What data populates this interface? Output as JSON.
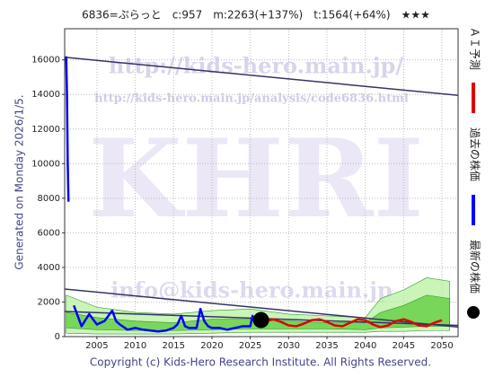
{
  "chart_data": {
    "type": "line",
    "title": "6836=ぷらっと　c:957　m:2263(+137%)　t:1564(+64%)　★★★",
    "side_text": "Generated on Monday 2026/1/5.",
    "footer": "Copyright (c) Kids-Hero Research Institute. All Rights Reserved.",
    "watermarks": [
      "http://kids-hero.main.jp/",
      "http://kids-hero.main.jp/analysis/code6836.html",
      "KHRI",
      "info@kids-hero.main.jp"
    ],
    "xlim": [
      2000.8,
      2052.1
    ],
    "ylim": [
      0,
      17800
    ],
    "xticks": [
      2005,
      2010,
      2015,
      2020,
      2025,
      2030,
      2035,
      2040,
      2045,
      2050
    ],
    "yticks": [
      0,
      2000,
      4000,
      6000,
      8000,
      10000,
      12000,
      14000,
      16000
    ],
    "grid": true,
    "bands": [
      {
        "color": "#b8f0a0",
        "x": [
          2001,
          2005,
          2010,
          2015,
          2020,
          2025,
          2030,
          2035,
          2040,
          2042,
          2045,
          2048,
          2051
        ],
        "upper": [
          2400,
          1700,
          1400,
          1300,
          1500,
          1600,
          1300,
          1200,
          1100,
          2200,
          2700,
          3400,
          3200
        ],
        "lower": [
          200,
          150,
          150,
          150,
          200,
          250,
          250,
          250,
          250,
          300,
          300,
          350,
          350
        ]
      },
      {
        "color": "#5ccc3c",
        "x": [
          2001,
          2005,
          2010,
          2015,
          2020,
          2025,
          2030,
          2035,
          2040,
          2042,
          2045,
          2048,
          2051
        ],
        "upper": [
          1400,
          1100,
          900,
          800,
          1000,
          1000,
          900,
          800,
          800,
          1400,
          1800,
          2400,
          2200
        ],
        "lower": [
          500,
          400,
          350,
          350,
          400,
          450,
          450,
          450,
          400,
          500,
          550,
          600,
          600
        ]
      }
    ],
    "trend_lines": [
      {
        "color": "#333366",
        "x": [
          2000.8,
          2052.1
        ],
        "values": [
          16150,
          13950
        ]
      },
      {
        "color": "#333366",
        "x": [
          2000.8,
          2052.1
        ],
        "values": [
          2750,
          550
        ]
      },
      {
        "color": "#333366",
        "x": [
          2000.8,
          2052.1
        ],
        "values": [
          1450,
          650
        ]
      }
    ],
    "series": [
      {
        "name": "ＡＩ予測",
        "color": "#e00000",
        "x": [
          2027,
          2028,
          2029,
          2030,
          2031,
          2032,
          2033,
          2034,
          2035,
          2036,
          2037,
          2038,
          2039,
          2040,
          2041,
          2042,
          2043,
          2044,
          2045,
          2046,
          2047,
          2048,
          2049,
          2050
        ],
        "values": [
          900,
          1000,
          850,
          650,
          600,
          750,
          950,
          1000,
          850,
          650,
          600,
          800,
          1000,
          950,
          700,
          550,
          650,
          900,
          1000,
          850,
          650,
          600,
          800,
          950
        ]
      },
      {
        "name": "過去の株価",
        "color": "#0000ff",
        "x": [
          2001.0,
          2001.1,
          2001.2,
          2001.3,
          2001.4,
          2002,
          2003,
          2004,
          2005,
          2006,
          2007,
          2007.5,
          2008,
          2009,
          2010,
          2011,
          2012,
          2013,
          2014,
          2015,
          2015.5,
          2016,
          2016.5,
          2017,
          2018,
          2018.5,
          2019,
          2019.5,
          2020,
          2021,
          2022,
          2023,
          2024,
          2025,
          2025.3,
          2025.6
        ],
        "values": [
          16200,
          14000,
          10000,
          7800,
          null,
          1800,
          600,
          1300,
          700,
          900,
          1500,
          900,
          700,
          400,
          500,
          400,
          350,
          300,
          350,
          500,
          700,
          1200,
          600,
          500,
          500,
          1600,
          900,
          600,
          500,
          500,
          400,
          500,
          600,
          600,
          1200,
          800
        ]
      }
    ],
    "latest": {
      "name": "最新の株価",
      "color": "#000000",
      "x": 2026.4,
      "value": 957
    }
  }
}
